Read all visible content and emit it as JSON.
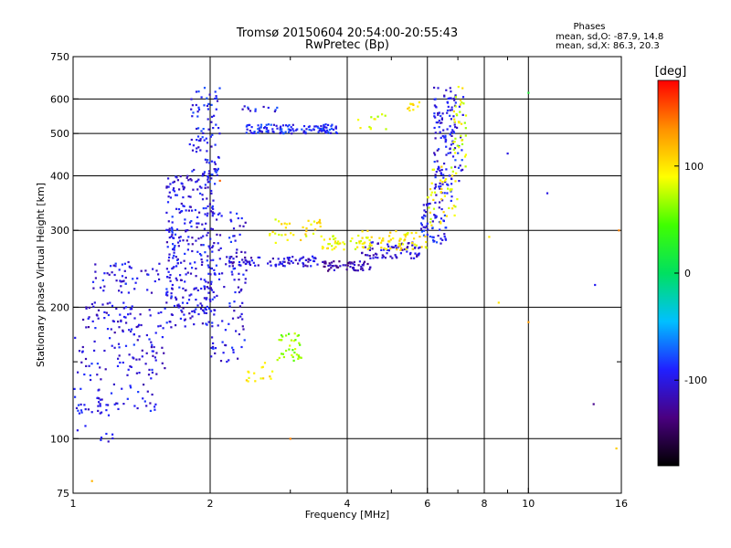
{
  "chart_data": {
    "type": "scatter",
    "title": "Tromsø 20150604 20:54:00-20:55:43",
    "subtitle": "RwPretec (Bp)",
    "xlabel": "Frequency [MHz]",
    "ylabel": "Stationary phase Virtual Height [km]",
    "x_scale": "log",
    "y_scale": "log",
    "xlim": [
      1,
      16
    ],
    "ylim": [
      75,
      750
    ],
    "x_ticks": [
      1,
      2,
      4,
      6,
      8,
      10,
      16
    ],
    "x_minor_ticks": [
      3,
      5,
      7,
      9
    ],
    "y_ticks": [
      75,
      100,
      200,
      300,
      400,
      500,
      600,
      750
    ],
    "y_minor_ticks": [
      150
    ],
    "grid": true,
    "phase_box": {
      "title": "Phases",
      "line_o": "mean, sd,O: -87.9, 14.8",
      "line_x": "mean, sd,X:  86.3, 20.3"
    },
    "colorbar": {
      "label": "[deg]",
      "range": [
        -180,
        180
      ],
      "ticks": [
        100,
        0,
        -100
      ],
      "colormap": [
        "#000000",
        "#4a0080",
        "#2020ff",
        "#00c0ff",
        "#00e060",
        "#40ff00",
        "#ffff00",
        "#ff9000",
        "#ff0000"
      ]
    },
    "series": [
      {
        "clusters": [
          {
            "f": [
              1.0,
              1.25
            ],
            "h": [
              98,
              125
            ],
            "phase": -100,
            "n": 30
          },
          {
            "f": [
              1.0,
              1.55
            ],
            "h": [
              115,
              175
            ],
            "phase": -100,
            "n": 90
          },
          {
            "f": [
              1.05,
              1.35
            ],
            "h": [
              175,
              205
            ],
            "phase": -105,
            "n": 50
          },
          {
            "f": [
              1.1,
              1.55
            ],
            "h": [
              215,
              255
            ],
            "phase": -100,
            "n": 55
          },
          {
            "f": [
              1.3,
              1.6
            ],
            "h": [
              140,
              200
            ],
            "phase": -100,
            "n": 40
          },
          {
            "f": [
              1.6,
              2.05
            ],
            "h": [
              180,
              400
            ],
            "phase": -100,
            "n": 320
          },
          {
            "f": [
              1.8,
              2.1
            ],
            "h": [
              400,
              640
            ],
            "phase": -95,
            "n": 90
          },
          {
            "f": [
              2.0,
              2.4
            ],
            "h": [
              150,
              330
            ],
            "phase": -100,
            "n": 110
          },
          {
            "f": [
              2.4,
              3.8
            ],
            "h": [
              500,
              525
            ],
            "phase": -90,
            "n": 120
          },
          {
            "f": [
              2.3,
              3.0
            ],
            "h": [
              560,
              585
            ],
            "phase": -95,
            "n": 12
          },
          {
            "f": [
              2.2,
              3.5
            ],
            "h": [
              248,
              262
            ],
            "phase": -105,
            "n": 80
          },
          {
            "f": [
              3.5,
              4.5
            ],
            "h": [
              242,
              255
            ],
            "phase": -120,
            "n": 60
          },
          {
            "f": [
              4.3,
              5.8
            ],
            "h": [
              258,
              282
            ],
            "phase": -110,
            "n": 70
          },
          {
            "f": [
              5.8,
              6.6
            ],
            "h": [
              280,
              350
            ],
            "phase": -95,
            "n": 60
          },
          {
            "f": [
              6.2,
              6.8
            ],
            "h": [
              350,
              640
            ],
            "phase": -100,
            "n": 110
          },
          {
            "f": [
              6.7,
              7.2
            ],
            "h": [
              380,
              640
            ],
            "phase": -95,
            "n": 40
          }
        ]
      },
      {
        "clusters": [
          {
            "f": [
              2.7,
              3.5
            ],
            "h": [
              280,
              320
            ],
            "phase": 95,
            "n": 35
          },
          {
            "f": [
              3.5,
              4.5
            ],
            "h": [
              270,
              292
            ],
            "phase": 90,
            "n": 45
          },
          {
            "f": [
              4.3,
              6.0
            ],
            "h": [
              270,
              300
            ],
            "phase": 95,
            "n": 60
          },
          {
            "f": [
              6.0,
              7.0
            ],
            "h": [
              300,
              420
            ],
            "phase": 90,
            "n": 45
          },
          {
            "f": [
              6.8,
              7.3
            ],
            "h": [
              420,
              640
            ],
            "phase": 85,
            "n": 35
          },
          {
            "f": [
              2.8,
              3.2
            ],
            "h": [
              150,
              175
            ],
            "phase": 65,
            "n": 35
          },
          {
            "f": [
              2.4,
              2.8
            ],
            "h": [
              135,
              150
            ],
            "phase": 95,
            "n": 15
          },
          {
            "f": [
              4.2,
              4.9
            ],
            "h": [
              510,
              560
            ],
            "phase": 80,
            "n": 12
          },
          {
            "f": [
              5.4,
              5.8
            ],
            "h": [
              560,
              590
            ],
            "phase": 105,
            "n": 10
          }
        ]
      },
      {
        "points": [
          {
            "f": 10.0,
            "h": 620,
            "phase": 20
          },
          {
            "f": 10.0,
            "h": 185,
            "phase": 130
          },
          {
            "f": 13.9,
            "h": 120,
            "phase": -130
          },
          {
            "f": 14.0,
            "h": 225,
            "phase": -95
          },
          {
            "f": 15.6,
            "h": 95,
            "phase": 110
          },
          {
            "f": 15.8,
            "h": 300,
            "phase": 140
          },
          {
            "f": 9.0,
            "h": 450,
            "phase": -100
          },
          {
            "f": 11.0,
            "h": 365,
            "phase": -100
          },
          {
            "f": 8.6,
            "h": 205,
            "phase": 100
          },
          {
            "f": 8.2,
            "h": 290,
            "phase": 100
          },
          {
            "f": 1.1,
            "h": 80,
            "phase": 120
          },
          {
            "f": 3.0,
            "h": 100,
            "phase": 140
          },
          {
            "f": 2.1,
            "h": 390,
            "phase": 150
          }
        ]
      }
    ]
  }
}
